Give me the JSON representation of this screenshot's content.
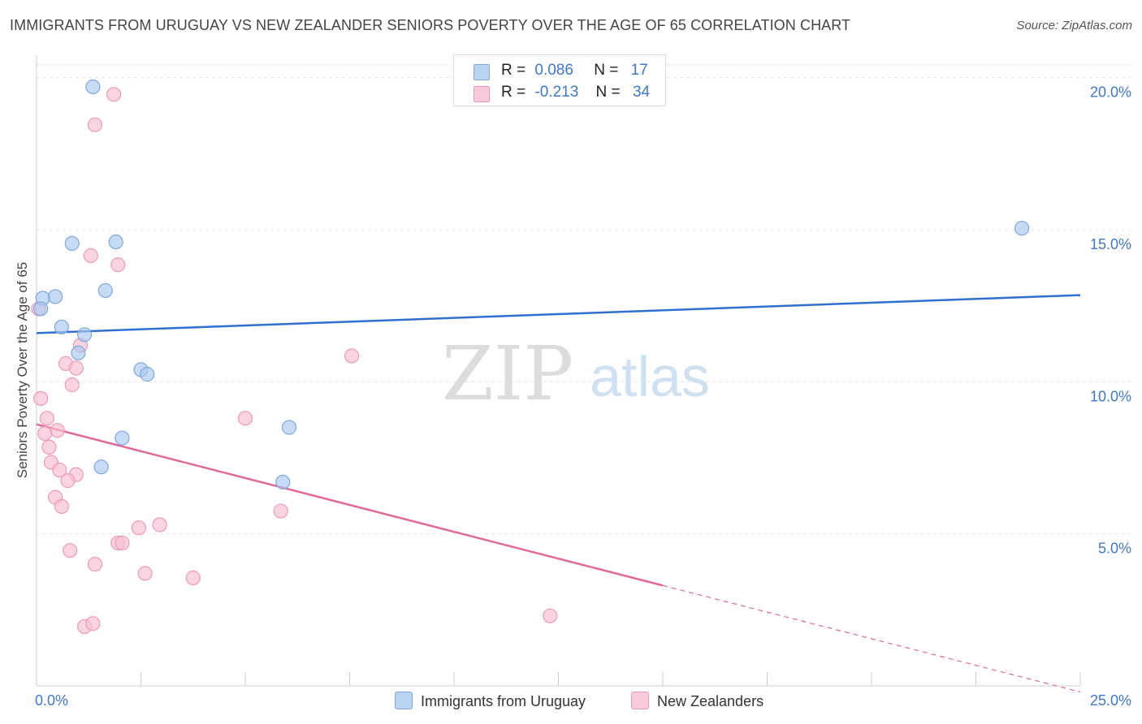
{
  "title": "IMMIGRANTS FROM URUGUAY VS NEW ZEALANDER SENIORS POVERTY OVER THE AGE OF 65 CORRELATION CHART",
  "source": "Source: ZipAtlas.com",
  "watermark": {
    "zip": "ZIP",
    "atlas": "atlas"
  },
  "legend": {
    "rows": [
      {
        "r_label": "R =",
        "r_value": "0.086",
        "n_label": "N =",
        "n_value": "17"
      },
      {
        "r_label": "R =",
        "r_value": "-0.213",
        "n_label": "N =",
        "n_value": "34"
      }
    ]
  },
  "bottom_legend": [
    "Immigrants from Uruguay",
    "New Zealanders"
  ],
  "chart_data": {
    "type": "scatter",
    "title": "IMMIGRANTS FROM URUGUAY VS NEW ZEALANDER SENIORS POVERTY OVER THE AGE OF 65 CORRELATION CHART",
    "xlabel": "",
    "ylabel": "Seniors Poverty Over the Age of 65",
    "xlim": [
      0,
      25
    ],
    "ylim": [
      0,
      20.5
    ],
    "x_tick_labels": [
      "0.0%",
      "25.0%"
    ],
    "y_ticks": [
      5,
      10,
      15,
      20
    ],
    "y_tick_labels": [
      "5.0%",
      "10.0%",
      "15.0%",
      "20.0%"
    ],
    "grid": true,
    "colors": {
      "uruguay_fill": "#a9c8f0",
      "uruguay_stroke": "#7ea8de",
      "uruguay_line": "#2f6fd0",
      "nz_fill": "#f7bfd0",
      "nz_stroke": "#ef9ab5",
      "nz_line": "#e06a95"
    },
    "series": [
      {
        "name": "Immigrants from Uruguay",
        "points": [
          [
            1.35,
            19.7
          ],
          [
            0.85,
            14.55
          ],
          [
            1.9,
            14.6
          ],
          [
            0.15,
            12.75
          ],
          [
            0.45,
            12.8
          ],
          [
            1.65,
            13.0
          ],
          [
            0.1,
            12.4
          ],
          [
            0.6,
            11.8
          ],
          [
            1.15,
            11.55
          ],
          [
            1.0,
            10.95
          ],
          [
            2.5,
            10.4
          ],
          [
            2.65,
            10.25
          ],
          [
            6.05,
            8.5
          ],
          [
            2.05,
            8.15
          ],
          [
            1.55,
            7.2
          ],
          [
            5.9,
            6.7
          ],
          [
            23.6,
            15.05
          ]
        ],
        "trend": {
          "x": [
            0,
            25
          ],
          "y": [
            11.6,
            12.85
          ]
        }
      },
      {
        "name": "New Zealanders",
        "points": [
          [
            1.85,
            19.45
          ],
          [
            1.4,
            18.45
          ],
          [
            1.3,
            14.15
          ],
          [
            1.95,
            13.85
          ],
          [
            0.05,
            12.4
          ],
          [
            1.05,
            11.2
          ],
          [
            0.7,
            10.6
          ],
          [
            0.95,
            10.45
          ],
          [
            0.85,
            9.9
          ],
          [
            7.55,
            10.85
          ],
          [
            0.1,
            9.45
          ],
          [
            0.25,
            8.8
          ],
          [
            0.5,
            8.4
          ],
          [
            5.0,
            8.8
          ],
          [
            0.2,
            8.3
          ],
          [
            0.3,
            7.85
          ],
          [
            0.35,
            7.35
          ],
          [
            0.55,
            7.1
          ],
          [
            0.95,
            6.95
          ],
          [
            0.75,
            6.75
          ],
          [
            0.45,
            6.2
          ],
          [
            0.6,
            5.9
          ],
          [
            5.85,
            5.75
          ],
          [
            2.45,
            5.2
          ],
          [
            2.95,
            5.3
          ],
          [
            1.95,
            4.7
          ],
          [
            2.05,
            4.7
          ],
          [
            0.8,
            4.45
          ],
          [
            1.4,
            4.0
          ],
          [
            2.6,
            3.7
          ],
          [
            3.75,
            3.55
          ],
          [
            1.15,
            1.95
          ],
          [
            1.35,
            2.05
          ],
          [
            12.3,
            2.3
          ]
        ],
        "trend": {
          "x": [
            0,
            15
          ],
          "y": [
            8.6,
            3.3
          ]
        },
        "trend_dashed": {
          "x": [
            15,
            25
          ],
          "y": [
            3.3,
            -0.2
          ]
        }
      }
    ]
  }
}
